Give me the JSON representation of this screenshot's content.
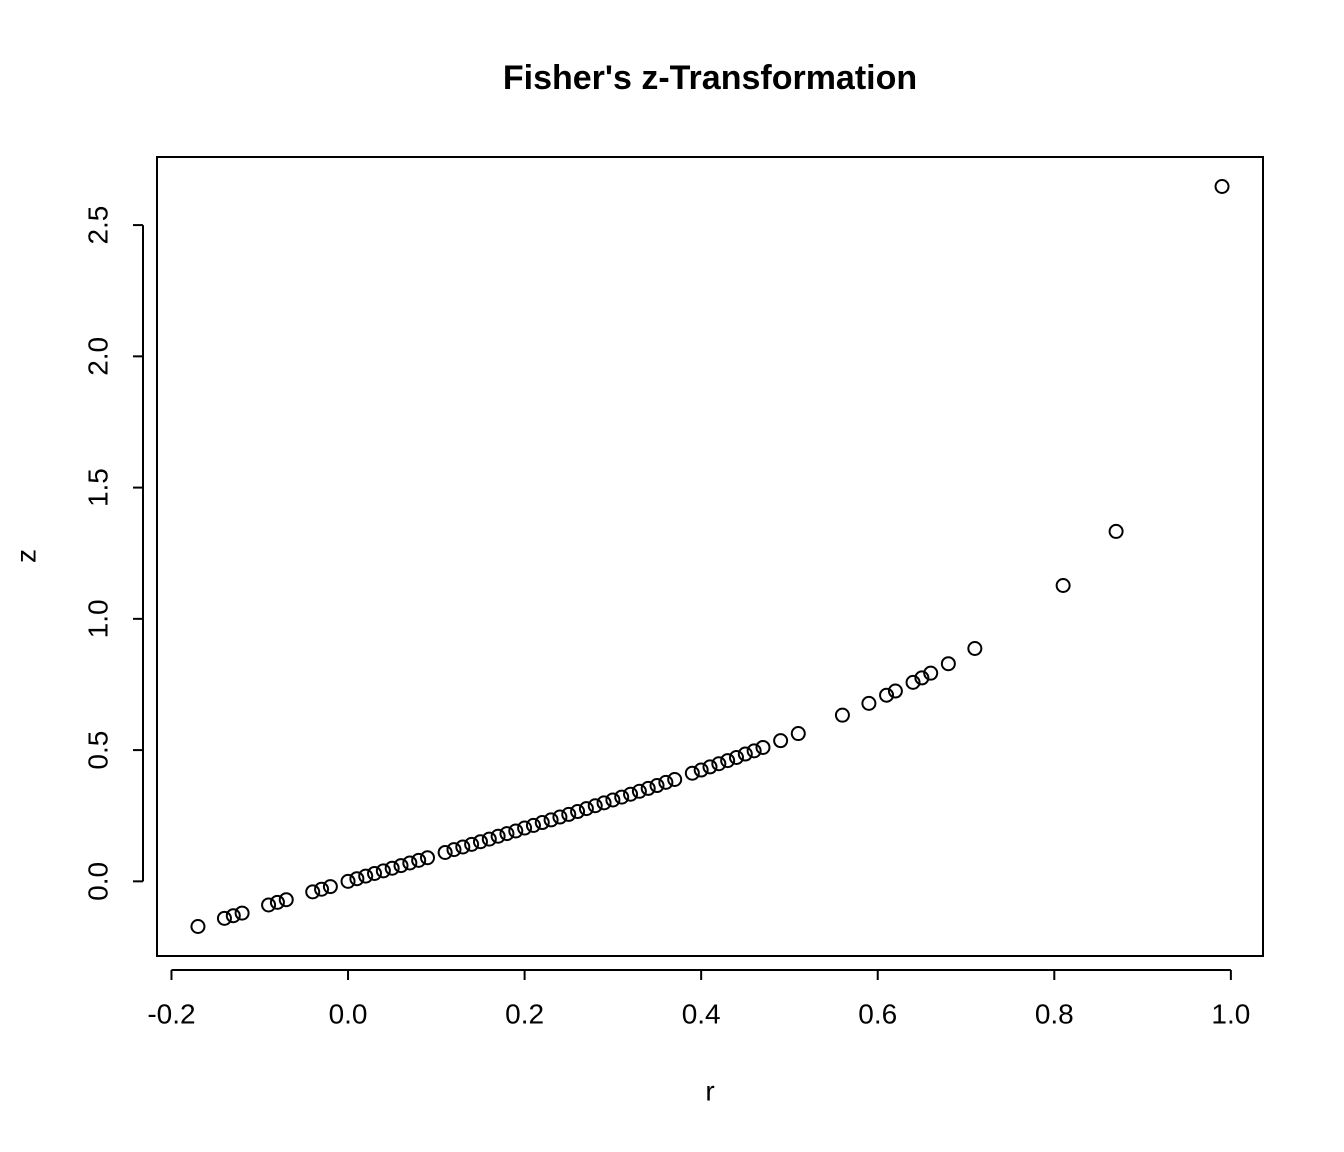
{
  "chart_data": {
    "type": "scatter",
    "title": "Fisher's z-Transformation",
    "x_label": "r",
    "y_label": "z",
    "x": [
      -0.17,
      -0.14,
      -0.13,
      -0.12,
      -0.09,
      -0.08,
      -0.07,
      -0.04,
      -0.03,
      -0.02,
      0,
      0.01,
      0.02,
      0.03,
      0.04,
      0.05,
      0.06,
      0.07,
      0.08,
      0.09,
      0.11,
      0.12,
      0.13,
      0.14,
      0.15,
      0.16,
      0.17,
      0.18,
      0.19,
      0.2,
      0.21,
      0.22,
      0.23,
      0.24,
      0.25,
      0.26,
      0.27,
      0.28,
      0.29,
      0.3,
      0.31,
      0.32,
      0.33,
      0.34,
      0.35,
      0.36,
      0.37,
      0.39,
      0.4,
      0.41,
      0.42,
      0.43,
      0.44,
      0.45,
      0.46,
      0.47,
      0.49,
      0.51,
      0.56,
      0.59,
      0.61,
      0.62,
      0.64,
      0.65,
      0.66,
      0.68,
      0.71,
      0.81,
      0.87,
      0.99
    ],
    "values": [
      -0.172,
      -0.141,
      -0.131,
      -0.121,
      -0.09,
      -0.08,
      -0.07,
      -0.04,
      -0.03,
      -0.02,
      0,
      0.01,
      0.02,
      0.03,
      0.04,
      0.05,
      0.06,
      0.07,
      0.08,
      0.09,
      0.11,
      0.121,
      0.131,
      0.141,
      0.151,
      0.161,
      0.172,
      0.182,
      0.192,
      0.203,
      0.213,
      0.224,
      0.234,
      0.245,
      0.255,
      0.266,
      0.277,
      0.288,
      0.299,
      0.31,
      0.321,
      0.332,
      0.343,
      0.354,
      0.365,
      0.377,
      0.388,
      0.412,
      0.424,
      0.436,
      0.448,
      0.46,
      0.472,
      0.485,
      0.497,
      0.51,
      0.536,
      0.563,
      0.633,
      0.678,
      0.709,
      0.725,
      0.758,
      0.775,
      0.793,
      0.829,
      0.887,
      1.127,
      1.333,
      2.647
    ],
    "color": "#000000",
    "xlim": [
      -0.2164,
      1.0364
    ],
    "ylim": [
      -0.2844,
      2.7594
    ],
    "xticks": [
      {
        "value": -0.2,
        "label": "-0.2"
      },
      {
        "value": 0,
        "label": "0.0"
      },
      0.2,
      0.4,
      0.6,
      0.8,
      {
        "value": 1,
        "label": "1.0"
      }
    ],
    "yticks": [
      {
        "value": 0,
        "label": "0.0"
      },
      0.5,
      {
        "value": 1,
        "label": "1.0"
      },
      1.5,
      {
        "value": 2,
        "label": "2.0"
      },
      2.5
    ],
    "grid": false
  }
}
